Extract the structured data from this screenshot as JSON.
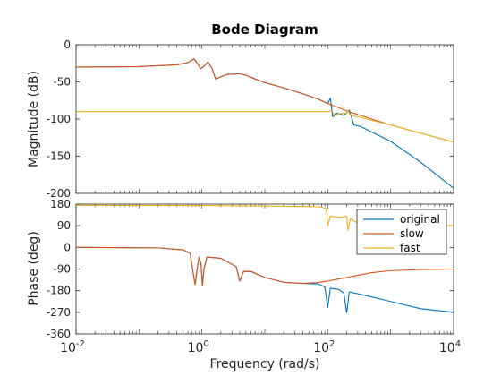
{
  "chart_data": {
    "type": "line",
    "title": "Bode Diagram",
    "xlabel": "Frequency  (rad/s)",
    "xscale": "log",
    "xlim": [
      0.01,
      10000
    ],
    "xticks": [
      0.01,
      1,
      100,
      10000
    ],
    "legend": {
      "position": "upper-right of phase panel",
      "entries": [
        "original",
        "slow",
        "fast"
      ]
    },
    "colors": {
      "original": "#0072BD",
      "slow": "#D95319",
      "fast": "#EDB120"
    },
    "panels": [
      {
        "name": "magnitude",
        "ylabel": "Magnitude (dB)",
        "ylim": [
          -200,
          0
        ],
        "yticks": [
          0,
          -50,
          -100,
          -150,
          -200
        ],
        "series": [
          {
            "name": "original",
            "points": [
              [
                0.01,
                -30
              ],
              [
                0.1,
                -29.5
              ],
              [
                0.4,
                -27
              ],
              [
                0.6,
                -24
              ],
              [
                0.75,
                -19
              ],
              [
                0.85,
                -25
              ],
              [
                0.95,
                -32
              ],
              [
                1.05,
                -30
              ],
              [
                1.25,
                -23
              ],
              [
                1.45,
                -32
              ],
              [
                1.65,
                -46
              ],
              [
                1.9,
                -44
              ],
              [
                2.5,
                -40
              ],
              [
                4,
                -39
              ],
              [
                5,
                -41
              ],
              [
                7,
                -46
              ],
              [
                10,
                -51
              ],
              [
                20,
                -58
              ],
              [
                40,
                -66
              ],
              [
                70,
                -73
              ],
              [
                100,
                -79
              ],
              [
                110,
                -72
              ],
              [
                120,
                -97
              ],
              [
                140,
                -92
              ],
              [
                180,
                -95
              ],
              [
                220,
                -88
              ],
              [
                260,
                -108
              ],
              [
                330,
                -110
              ],
              [
                1000,
                -130
              ],
              [
                3000,
                -158
              ],
              [
                10000,
                -193
              ]
            ]
          },
          {
            "name": "slow",
            "points": [
              [
                0.01,
                -30
              ],
              [
                0.1,
                -29.5
              ],
              [
                0.4,
                -27
              ],
              [
                0.6,
                -24
              ],
              [
                0.75,
                -19
              ],
              [
                0.85,
                -25
              ],
              [
                0.95,
                -32
              ],
              [
                1.05,
                -30
              ],
              [
                1.25,
                -23
              ],
              [
                1.45,
                -32
              ],
              [
                1.65,
                -46
              ],
              [
                1.9,
                -44
              ],
              [
                2.5,
                -40
              ],
              [
                4,
                -39
              ],
              [
                5,
                -41
              ],
              [
                7,
                -46
              ],
              [
                10,
                -51
              ],
              [
                20,
                -58
              ],
              [
                40,
                -66
              ],
              [
                70,
                -73
              ],
              [
                100,
                -79
              ],
              [
                200,
                -89
              ],
              [
                500,
                -100
              ],
              [
                1000,
                -108
              ],
              [
                3000,
                -119
              ],
              [
                10000,
                -131
              ]
            ]
          },
          {
            "name": "fast",
            "points": [
              [
                0.01,
                -90
              ],
              [
                80,
                -90
              ],
              [
                100,
                -90
              ],
              [
                110,
                -89
              ],
              [
                120,
                -91
              ],
              [
                130,
                -95
              ],
              [
                150,
                -93
              ],
              [
                200,
                -92
              ],
              [
                210,
                -89
              ],
              [
                230,
                -95
              ],
              [
                300,
                -97
              ],
              [
                1000,
                -108
              ],
              [
                3000,
                -119
              ],
              [
                10000,
                -131
              ]
            ]
          }
        ]
      },
      {
        "name": "phase",
        "ylabel": "Phase (deg)",
        "ylim": [
          -360,
          180
        ],
        "yticks": [
          180,
          90,
          0,
          -90,
          -180,
          -270,
          -360
        ],
        "series": [
          {
            "name": "original",
            "points": [
              [
                0.01,
                0
              ],
              [
                0.2,
                -2
              ],
              [
                0.5,
                -10
              ],
              [
                0.65,
                -25
              ],
              [
                0.72,
                -100
              ],
              [
                0.78,
                -155
              ],
              [
                0.83,
                -100
              ],
              [
                0.9,
                -40
              ],
              [
                0.97,
                -70
              ],
              [
                1.02,
                -160
              ],
              [
                1.08,
                -90
              ],
              [
                1.2,
                -40
              ],
              [
                2,
                -45
              ],
              [
                3.5,
                -80
              ],
              [
                4,
                -140
              ],
              [
                4.6,
                -100
              ],
              [
                6,
                -100
              ],
              [
                10,
                -125
              ],
              [
                20,
                -145
              ],
              [
                40,
                -150
              ],
              [
                70,
                -152
              ],
              [
                90,
                -165
              ],
              [
                100,
                -250
              ],
              [
                110,
                -170
              ],
              [
                150,
                -175
              ],
              [
                180,
                -190
              ],
              [
                200,
                -272
              ],
              [
                220,
                -185
              ],
              [
                400,
                -200
              ],
              [
                1000,
                -225
              ],
              [
                3000,
                -255
              ],
              [
                10000,
                -270
              ]
            ]
          },
          {
            "name": "slow",
            "points": [
              [
                0.01,
                0
              ],
              [
                0.2,
                -2
              ],
              [
                0.5,
                -10
              ],
              [
                0.65,
                -25
              ],
              [
                0.72,
                -100
              ],
              [
                0.78,
                -155
              ],
              [
                0.83,
                -100
              ],
              [
                0.9,
                -40
              ],
              [
                0.97,
                -70
              ],
              [
                1.02,
                -160
              ],
              [
                1.08,
                -90
              ],
              [
                1.2,
                -40
              ],
              [
                2,
                -45
              ],
              [
                3.5,
                -80
              ],
              [
                4,
                -140
              ],
              [
                4.6,
                -100
              ],
              [
                6,
                -100
              ],
              [
                10,
                -125
              ],
              [
                20,
                -145
              ],
              [
                40,
                -150
              ],
              [
                70,
                -146
              ],
              [
                100,
                -140
              ],
              [
                200,
                -125
              ],
              [
                500,
                -105
              ],
              [
                1000,
                -97
              ],
              [
                3000,
                -92
              ],
              [
                10000,
                -90
              ]
            ]
          },
          {
            "name": "fast",
            "points": [
              [
                0.01,
                175
              ],
              [
                1,
                174
              ],
              [
                10,
                172
              ],
              [
                50,
                170
              ],
              [
                80,
                168
              ],
              [
                95,
                160
              ],
              [
                100,
                90
              ],
              [
                110,
                130
              ],
              [
                160,
                125
              ],
              [
                200,
                130
              ],
              [
                210,
                70
              ],
              [
                230,
                120
              ],
              [
                300,
                100
              ],
              [
                1000,
                94
              ],
              [
                3000,
                91
              ],
              [
                10000,
                90
              ]
            ]
          }
        ]
      }
    ]
  }
}
